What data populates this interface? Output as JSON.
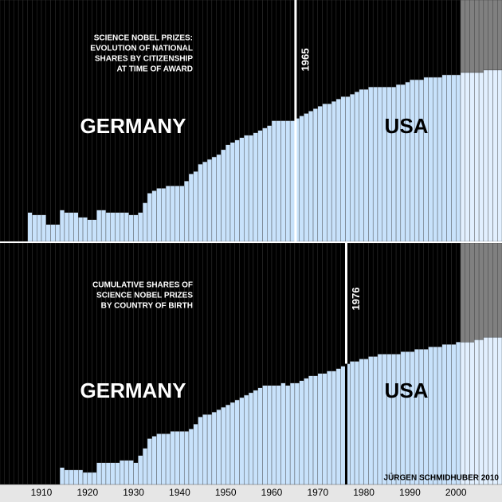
{
  "chart_data": [
    {
      "type": "stacked-bar",
      "annotation": [
        "SCIENCE NOBEL PRIZES:",
        "EVOLUTION OF NATIONAL",
        "SHARES BY CITIZENSHIP",
        "AT TIME OF AWARD"
      ],
      "marker": 1965,
      "marker_color": "#ffffff",
      "xlim": [
        1901,
        2010
      ],
      "ylim": [
        0,
        100
      ],
      "shaded_from": 2001,
      "x": [
        1901,
        1902,
        1903,
        1904,
        1905,
        1906,
        1907,
        1908,
        1909,
        1910,
        1911,
        1912,
        1913,
        1914,
        1915,
        1916,
        1917,
        1918,
        1919,
        1920,
        1921,
        1922,
        1923,
        1924,
        1925,
        1926,
        1927,
        1928,
        1929,
        1930,
        1931,
        1932,
        1933,
        1934,
        1935,
        1936,
        1937,
        1938,
        1939,
        1940,
        1941,
        1942,
        1943,
        1944,
        1945,
        1946,
        1947,
        1948,
        1949,
        1950,
        1951,
        1952,
        1953,
        1954,
        1955,
        1956,
        1957,
        1958,
        1959,
        1960,
        1961,
        1962,
        1963,
        1964,
        1965,
        1966,
        1967,
        1968,
        1969,
        1970,
        1971,
        1972,
        1973,
        1974,
        1975,
        1976,
        1977,
        1978,
        1979,
        1980,
        1981,
        1982,
        1983,
        1984,
        1985,
        1986,
        1987,
        1988,
        1989,
        1990,
        1991,
        1992,
        1993,
        1994,
        1995,
        1996,
        1997,
        1998,
        1999,
        2000,
        2001,
        2002,
        2003,
        2004,
        2005,
        2006,
        2007,
        2008,
        2009
      ],
      "series": [
        {
          "name": "USA",
          "color": "#c8e2fb",
          "shade_color": "#e2f0ff",
          "values": [
            0,
            0,
            0,
            0,
            0,
            0,
            12,
            11,
            11,
            11,
            7,
            7,
            7,
            13,
            12,
            12,
            12,
            10,
            10,
            9,
            9,
            13,
            13,
            12,
            12,
            12,
            12,
            12,
            11,
            11,
            12,
            16,
            20,
            21,
            22,
            22,
            23,
            23,
            23,
            23,
            25,
            28,
            29,
            32,
            33,
            34,
            35,
            36,
            38,
            40,
            41,
            42,
            43,
            44,
            44,
            45,
            46,
            47,
            48,
            50,
            50,
            50,
            50,
            50,
            51,
            52,
            53,
            54,
            55,
            56,
            57,
            57,
            58,
            59,
            60,
            60,
            61,
            62,
            63,
            63,
            64,
            64,
            64,
            64,
            64,
            64,
            65,
            65,
            66,
            67,
            67,
            67,
            68,
            68,
            68,
            68,
            69,
            69,
            69,
            69,
            70,
            70,
            70,
            70,
            70,
            71,
            71,
            71,
            71
          ]
        },
        {
          "name": "GERMANY",
          "color": "#000000",
          "shade_color": "#808080",
          "values": [
            100,
            100,
            100,
            100,
            100,
            100,
            88,
            89,
            89,
            89,
            93,
            93,
            93,
            87,
            88,
            88,
            88,
            90,
            90,
            91,
            91,
            87,
            87,
            88,
            88,
            88,
            88,
            88,
            89,
            89,
            88,
            84,
            80,
            79,
            78,
            78,
            77,
            77,
            77,
            77,
            75,
            72,
            71,
            68,
            67,
            66,
            65,
            64,
            62,
            60,
            59,
            58,
            57,
            56,
            56,
            55,
            54,
            53,
            52,
            50,
            50,
            50,
            50,
            50,
            49,
            48,
            47,
            46,
            45,
            44,
            43,
            43,
            42,
            41,
            40,
            40,
            39,
            38,
            37,
            37,
            36,
            36,
            36,
            36,
            36,
            36,
            35,
            35,
            34,
            33,
            33,
            33,
            32,
            32,
            32,
            32,
            31,
            31,
            31,
            31,
            30,
            30,
            30,
            30,
            30,
            29,
            29,
            29,
            29
          ]
        }
      ]
    },
    {
      "type": "stacked-bar",
      "annotation": [
        "CUMULATIVE SHARES OF",
        "SCIENCE NOBEL PRIZES",
        "BY COUNTRY OF BIRTH"
      ],
      "marker": 1976,
      "marker_color": "#000000",
      "xlim": [
        1901,
        2010
      ],
      "ylim": [
        0,
        100
      ],
      "shaded_from": 2001,
      "xticks": [
        1910,
        1920,
        1930,
        1940,
        1950,
        1960,
        1970,
        1980,
        1990,
        2000
      ],
      "x": [
        1901,
        1902,
        1903,
        1904,
        1905,
        1906,
        1907,
        1908,
        1909,
        1910,
        1911,
        1912,
        1913,
        1914,
        1915,
        1916,
        1917,
        1918,
        1919,
        1920,
        1921,
        1922,
        1923,
        1924,
        1925,
        1926,
        1927,
        1928,
        1929,
        1930,
        1931,
        1932,
        1933,
        1934,
        1935,
        1936,
        1937,
        1938,
        1939,
        1940,
        1941,
        1942,
        1943,
        1944,
        1945,
        1946,
        1947,
        1948,
        1949,
        1950,
        1951,
        1952,
        1953,
        1954,
        1955,
        1956,
        1957,
        1958,
        1959,
        1960,
        1961,
        1962,
        1963,
        1964,
        1965,
        1966,
        1967,
        1968,
        1969,
        1970,
        1971,
        1972,
        1973,
        1974,
        1975,
        1976,
        1977,
        1978,
        1979,
        1980,
        1981,
        1982,
        1983,
        1984,
        1985,
        1986,
        1987,
        1988,
        1989,
        1990,
        1991,
        1992,
        1993,
        1994,
        1995,
        1996,
        1997,
        1998,
        1999,
        2000,
        2001,
        2002,
        2003,
        2004,
        2005,
        2006,
        2007,
        2008,
        2009
      ],
      "series": [
        {
          "name": "USA",
          "color": "#c8e2fb",
          "shade_color": "#e2f0ff",
          "values": [
            0,
            0,
            0,
            0,
            0,
            0,
            0,
            0,
            0,
            0,
            0,
            0,
            0,
            7,
            6,
            6,
            6,
            6,
            5,
            5,
            5,
            9,
            9,
            9,
            9,
            9,
            10,
            10,
            10,
            9,
            12,
            15,
            19,
            20,
            21,
            21,
            21,
            22,
            22,
            22,
            22,
            23,
            25,
            28,
            29,
            29,
            30,
            31,
            32,
            33,
            34,
            35,
            36,
            37,
            38,
            39,
            40,
            41,
            41,
            41,
            41,
            42,
            41,
            42,
            42,
            43,
            44,
            45,
            45,
            46,
            46,
            47,
            47,
            48,
            49,
            50,
            51,
            51,
            52,
            52,
            53,
            53,
            54,
            54,
            54,
            54,
            54,
            55,
            55,
            55,
            56,
            56,
            56,
            57,
            57,
            57,
            58,
            58,
            58,
            59,
            59,
            59,
            59,
            60,
            60,
            61,
            61,
            61,
            61
          ]
        },
        {
          "name": "GERMANY",
          "color": "#000000",
          "shade_color": "#808080",
          "values": [
            100,
            100,
            100,
            100,
            100,
            100,
            100,
            100,
            100,
            100,
            100,
            100,
            100,
            93,
            94,
            94,
            94,
            94,
            95,
            95,
            95,
            91,
            91,
            91,
            91,
            91,
            90,
            90,
            90,
            91,
            88,
            85,
            81,
            80,
            79,
            79,
            79,
            78,
            78,
            78,
            78,
            77,
            75,
            72,
            71,
            71,
            70,
            69,
            68,
            67,
            66,
            65,
            64,
            63,
            62,
            61,
            60,
            59,
            59,
            59,
            59,
            58,
            59,
            58,
            58,
            57,
            56,
            55,
            55,
            54,
            54,
            53,
            53,
            52,
            51,
            50,
            49,
            49,
            48,
            48,
            47,
            47,
            46,
            46,
            46,
            46,
            46,
            45,
            45,
            45,
            44,
            44,
            44,
            43,
            43,
            43,
            42,
            42,
            42,
            41,
            41,
            41,
            41,
            40,
            40,
            39,
            39,
            39,
            39
          ]
        }
      ]
    }
  ],
  "credit": "JÜRGEN SCHMIDHUBER 2010"
}
